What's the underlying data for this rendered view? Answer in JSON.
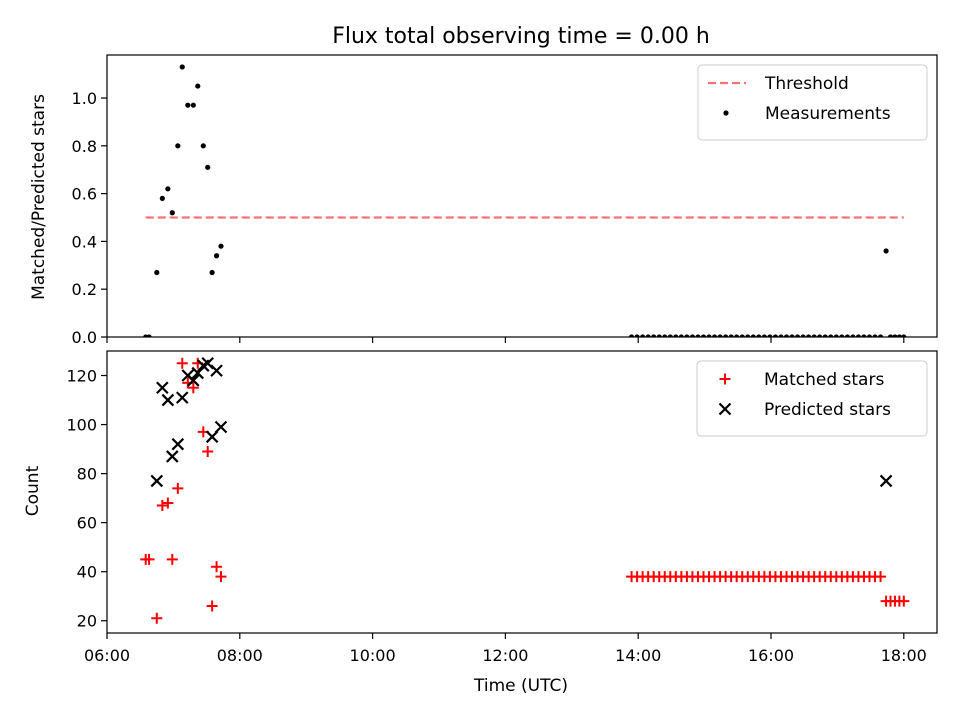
{
  "figure_title": "Flux total observing time = 0.00 h",
  "chart_data": [
    {
      "type": "scatter",
      "ylabel": "Matched/Predicted stars",
      "xlim": [
        "06:00",
        "18:30"
      ],
      "ylim": [
        0,
        1.18
      ],
      "yticks": [
        "0.0",
        "0.2",
        "0.4",
        "0.6",
        "0.8",
        "1.0"
      ],
      "legend_position": "top-right",
      "threshold": {
        "name": "Threshold",
        "value": 0.5,
        "x_range": [
          "06:35",
          "18:00"
        ],
        "color": "#ff7070",
        "style": "dashed"
      },
      "series": [
        {
          "name": "Measurements",
          "marker": "dot",
          "color": "#000000",
          "points": [
            [
              "06:35",
              0.0
            ],
            [
              "06:38",
              0.0
            ],
            [
              "06:45",
              0.27
            ],
            [
              "06:50",
              0.58
            ],
            [
              "06:55",
              0.62
            ],
            [
              "06:59",
              0.52
            ],
            [
              "07:04",
              0.8
            ],
            [
              "07:08",
              1.13
            ],
            [
              "07:13",
              0.97
            ],
            [
              "07:18",
              0.97
            ],
            [
              "07:22",
              1.05
            ],
            [
              "07:27",
              0.8
            ],
            [
              "07:31",
              0.71
            ],
            [
              "07:35",
              0.27
            ],
            [
              "07:39",
              0.34
            ],
            [
              "07:43",
              0.38
            ],
            [
              "13:54",
              0.0
            ],
            [
              "13:59",
              0.0
            ],
            [
              "14:04",
              0.0
            ],
            [
              "14:09",
              0.0
            ],
            [
              "14:14",
              0.0
            ],
            [
              "14:19",
              0.0
            ],
            [
              "14:24",
              0.0
            ],
            [
              "14:29",
              0.0
            ],
            [
              "14:34",
              0.0
            ],
            [
              "14:39",
              0.0
            ],
            [
              "14:44",
              0.0
            ],
            [
              "14:49",
              0.0
            ],
            [
              "14:54",
              0.0
            ],
            [
              "14:59",
              0.0
            ],
            [
              "15:04",
              0.0
            ],
            [
              "15:09",
              0.0
            ],
            [
              "15:14",
              0.0
            ],
            [
              "15:19",
              0.0
            ],
            [
              "15:24",
              0.0
            ],
            [
              "15:29",
              0.0
            ],
            [
              "15:34",
              0.0
            ],
            [
              "15:39",
              0.0
            ],
            [
              "15:44",
              0.0
            ],
            [
              "15:49",
              0.0
            ],
            [
              "15:54",
              0.0
            ],
            [
              "15:59",
              0.0
            ],
            [
              "16:04",
              0.0
            ],
            [
              "16:09",
              0.0
            ],
            [
              "16:14",
              0.0
            ],
            [
              "16:19",
              0.0
            ],
            [
              "16:24",
              0.0
            ],
            [
              "16:29",
              0.0
            ],
            [
              "16:34",
              0.0
            ],
            [
              "16:39",
              0.0
            ],
            [
              "16:44",
              0.0
            ],
            [
              "16:49",
              0.0
            ],
            [
              "16:54",
              0.0
            ],
            [
              "16:59",
              0.0
            ],
            [
              "17:04",
              0.0
            ],
            [
              "17:09",
              0.0
            ],
            [
              "17:14",
              0.0
            ],
            [
              "17:19",
              0.0
            ],
            [
              "17:24",
              0.0
            ],
            [
              "17:29",
              0.0
            ],
            [
              "17:34",
              0.0
            ],
            [
              "17:39",
              0.0
            ],
            [
              "17:44",
              0.36
            ],
            [
              "17:48",
              0.0
            ],
            [
              "17:52",
              0.0
            ],
            [
              "17:56",
              0.0
            ],
            [
              "18:00",
              0.0
            ]
          ]
        }
      ]
    },
    {
      "type": "scatter",
      "xlabel": "Time (UTC)",
      "ylabel": "Count",
      "xlim": [
        "06:00",
        "18:30"
      ],
      "ylim": [
        15,
        130
      ],
      "yticks": [
        "20",
        "40",
        "60",
        "80",
        "100",
        "120"
      ],
      "xticks": [
        "06:00",
        "08:00",
        "10:00",
        "12:00",
        "14:00",
        "16:00",
        "18:00"
      ],
      "legend_position": "top-right",
      "series": [
        {
          "name": "Matched stars",
          "marker": "plus",
          "color": "#ff0000",
          "points": [
            [
              "06:35",
              45
            ],
            [
              "06:38",
              45
            ],
            [
              "06:45",
              21
            ],
            [
              "06:50",
              67
            ],
            [
              "06:55",
              68
            ],
            [
              "06:59",
              45
            ],
            [
              "07:04",
              74
            ],
            [
              "07:08",
              125
            ],
            [
              "07:13",
              117
            ],
            [
              "07:18",
              115
            ],
            [
              "07:22",
              125
            ],
            [
              "07:27",
              97
            ],
            [
              "07:31",
              89
            ],
            [
              "07:35",
              26
            ],
            [
              "07:39",
              42
            ],
            [
              "07:43",
              38
            ],
            [
              "13:54",
              38
            ],
            [
              "13:59",
              38
            ],
            [
              "14:04",
              38
            ],
            [
              "14:09",
              38
            ],
            [
              "14:14",
              38
            ],
            [
              "14:19",
              38
            ],
            [
              "14:24",
              38
            ],
            [
              "14:29",
              38
            ],
            [
              "14:34",
              38
            ],
            [
              "14:39",
              38
            ],
            [
              "14:44",
              38
            ],
            [
              "14:49",
              38
            ],
            [
              "14:54",
              38
            ],
            [
              "14:59",
              38
            ],
            [
              "15:04",
              38
            ],
            [
              "15:09",
              38
            ],
            [
              "15:14",
              38
            ],
            [
              "15:19",
              38
            ],
            [
              "15:24",
              38
            ],
            [
              "15:29",
              38
            ],
            [
              "15:34",
              38
            ],
            [
              "15:39",
              38
            ],
            [
              "15:44",
              38
            ],
            [
              "15:49",
              38
            ],
            [
              "15:54",
              38
            ],
            [
              "15:59",
              38
            ],
            [
              "16:04",
              38
            ],
            [
              "16:09",
              38
            ],
            [
              "16:14",
              38
            ],
            [
              "16:19",
              38
            ],
            [
              "16:24",
              38
            ],
            [
              "16:29",
              38
            ],
            [
              "16:34",
              38
            ],
            [
              "16:39",
              38
            ],
            [
              "16:44",
              38
            ],
            [
              "16:49",
              38
            ],
            [
              "16:54",
              38
            ],
            [
              "16:59",
              38
            ],
            [
              "17:04",
              38
            ],
            [
              "17:09",
              38
            ],
            [
              "17:14",
              38
            ],
            [
              "17:19",
              38
            ],
            [
              "17:24",
              38
            ],
            [
              "17:29",
              38
            ],
            [
              "17:34",
              38
            ],
            [
              "17:39",
              38
            ],
            [
              "17:44",
              28
            ],
            [
              "17:48",
              28
            ],
            [
              "17:52",
              28
            ],
            [
              "17:56",
              28
            ],
            [
              "18:00",
              28
            ]
          ]
        },
        {
          "name": "Predicted stars",
          "marker": "cross",
          "color": "#000000",
          "points": [
            [
              "06:45",
              77
            ],
            [
              "06:50",
              115
            ],
            [
              "06:55",
              110
            ],
            [
              "06:59",
              87
            ],
            [
              "07:04",
              92
            ],
            [
              "07:08",
              111
            ],
            [
              "07:13",
              120
            ],
            [
              "07:18",
              118
            ],
            [
              "07:22",
              121
            ],
            [
              "07:27",
              124
            ],
            [
              "07:31",
              125
            ],
            [
              "07:35",
              95
            ],
            [
              "07:39",
              122
            ],
            [
              "07:43",
              99
            ],
            [
              "17:44",
              77
            ]
          ]
        }
      ]
    }
  ]
}
